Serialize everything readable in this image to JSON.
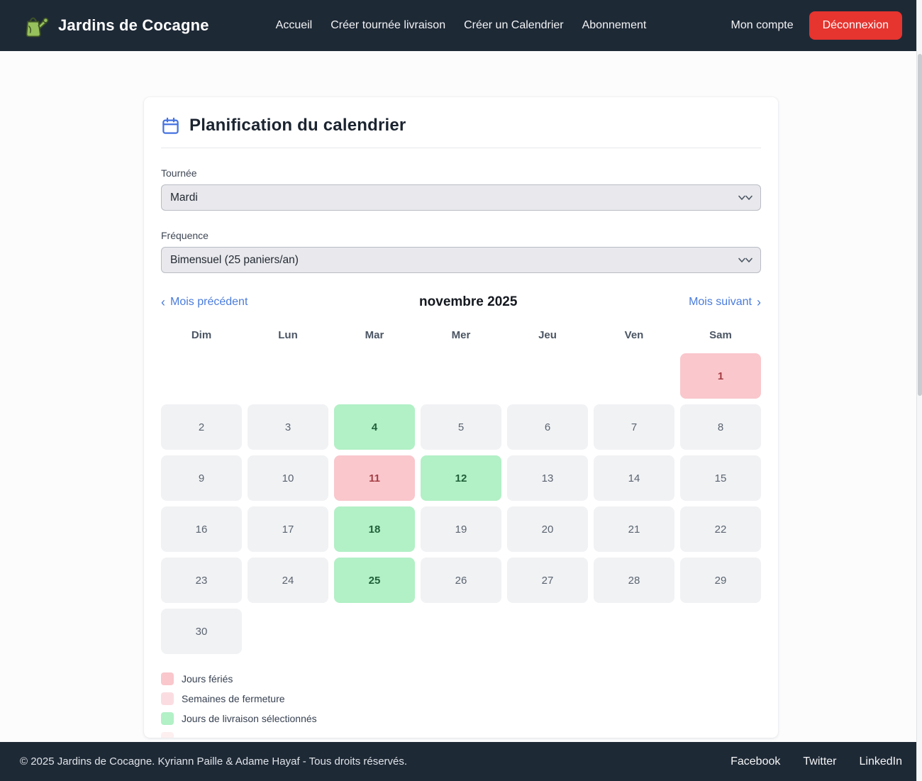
{
  "brand": {
    "name": "Jardins de Cocagne"
  },
  "navbar": {
    "links": [
      "Accueil",
      "Créer tournée livraison",
      "Créer un Calendrier",
      "Abonnement"
    ],
    "account_label": "Mon compte",
    "logout_label": "Déconnexion"
  },
  "page": {
    "title": "Planification du calendrier"
  },
  "form": {
    "tournee": {
      "label": "Tournée",
      "value": "Mardi"
    },
    "frequence": {
      "label": "Fréquence",
      "value": "Bimensuel (25 paniers/an)"
    }
  },
  "calendar": {
    "prev_label": "Mois précédent",
    "next_label": "Mois suivant",
    "prev_chevron": "‹",
    "next_chevron": "›",
    "month_title": "novembre 2025",
    "weekdays": [
      "Dim",
      "Lun",
      "Mar",
      "Mer",
      "Jeu",
      "Ven",
      "Sam"
    ],
    "leading_empty": 6,
    "total_cells": 42,
    "days": [
      {
        "n": "1",
        "type": "holiday"
      },
      {
        "n": "2",
        "type": "default"
      },
      {
        "n": "3",
        "type": "default"
      },
      {
        "n": "4",
        "type": "selected"
      },
      {
        "n": "5",
        "type": "default"
      },
      {
        "n": "6",
        "type": "default"
      },
      {
        "n": "7",
        "type": "default"
      },
      {
        "n": "8",
        "type": "default"
      },
      {
        "n": "9",
        "type": "default"
      },
      {
        "n": "10",
        "type": "default"
      },
      {
        "n": "11",
        "type": "holiday"
      },
      {
        "n": "12",
        "type": "selected"
      },
      {
        "n": "13",
        "type": "default"
      },
      {
        "n": "14",
        "type": "default"
      },
      {
        "n": "15",
        "type": "default"
      },
      {
        "n": "16",
        "type": "default"
      },
      {
        "n": "17",
        "type": "default"
      },
      {
        "n": "18",
        "type": "selected"
      },
      {
        "n": "19",
        "type": "default"
      },
      {
        "n": "20",
        "type": "default"
      },
      {
        "n": "21",
        "type": "default"
      },
      {
        "n": "22",
        "type": "default"
      },
      {
        "n": "23",
        "type": "default"
      },
      {
        "n": "24",
        "type": "default"
      },
      {
        "n": "25",
        "type": "selected"
      },
      {
        "n": "26",
        "type": "default"
      },
      {
        "n": "27",
        "type": "default"
      },
      {
        "n": "28",
        "type": "default"
      },
      {
        "n": "29",
        "type": "default"
      },
      {
        "n": "30",
        "type": "default"
      }
    ]
  },
  "legend": [
    {
      "label": "Jours fériés",
      "color": "#f9c7cc"
    },
    {
      "label": "Semaines de fermeture",
      "color": "#fbdde1"
    },
    {
      "label": "Jours de livraison sélectionnés",
      "color": "#b2f0c6"
    },
    {
      "label": "",
      "color": "#fdeff0"
    }
  ],
  "footer": {
    "copyright": "© 2025 Jardins de Cocagne. Kyriann Paille & Adame Hayaf - Tous droits réservés.",
    "links": [
      "Facebook",
      "Twitter",
      "LinkedIn"
    ]
  },
  "icons": {
    "logo": "watering-can",
    "title": "calendar",
    "select": "double-chevron-down",
    "prev": "chevron-left",
    "next": "chevron-right"
  },
  "colors": {
    "navbar_bg": "#1e2936",
    "logout_red": "#e6342f",
    "brand_green": "#97c15c",
    "accent_blue": "#4472e0",
    "link_blue": "#4a7cdb",
    "holiday_bg": "#f9c7cc",
    "holiday_text": "#a53e45",
    "closure_bg": "#fbdde1",
    "selected_bg": "#b2f0c6",
    "selected_text": "#20613a",
    "day_bg": "#f1f2f4",
    "day_text": "#5b6470"
  }
}
